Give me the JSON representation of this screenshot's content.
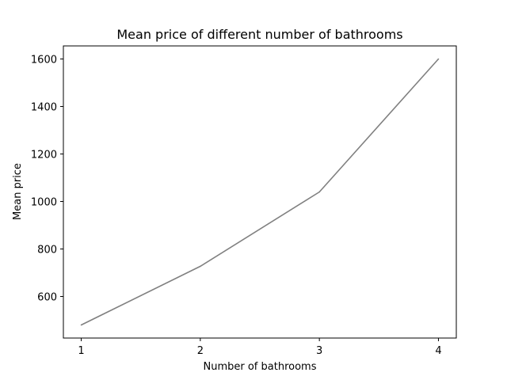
{
  "chart_data": {
    "type": "line",
    "title": "Mean price of different number of bathrooms",
    "xlabel": "Number of bathrooms",
    "ylabel": "Mean price",
    "x": [
      1,
      2,
      3,
      4
    ],
    "x_ticks": [
      1,
      2,
      3,
      4
    ],
    "y_ticks": [
      600,
      800,
      1000,
      1200,
      1400,
      1600
    ],
    "xlim": [
      0.85,
      4.15
    ],
    "ylim": [
      425,
      1655
    ],
    "grid": false,
    "series": [
      {
        "values": [
          480,
          727,
          1040,
          1600
        ],
        "color": "#808080"
      }
    ]
  }
}
